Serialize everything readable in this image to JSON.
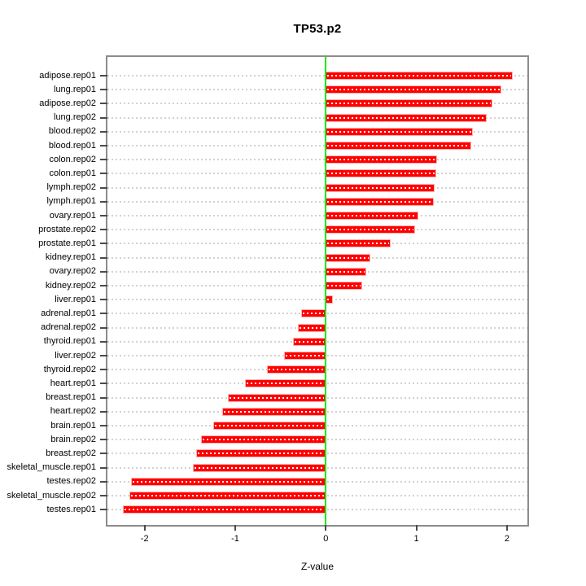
{
  "figure": {
    "title": "TP53.p2",
    "xlabel": "Z-value"
  },
  "chart_data": {
    "type": "bar",
    "orientation": "horizontal",
    "title": "TP53.p2",
    "xlabel": "Z-value",
    "ylabel": "",
    "categories": [
      "adipose.rep01",
      "lung.rep01",
      "adipose.rep02",
      "lung.rep02",
      "blood.rep02",
      "blood.rep01",
      "colon.rep02",
      "colon.rep01",
      "lymph.rep02",
      "lymph.rep01",
      "ovary.rep01",
      "prostate.rep02",
      "prostate.rep01",
      "kidney.rep01",
      "ovary.rep02",
      "kidney.rep02",
      "liver.rep01",
      "adrenal.rep01",
      "adrenal.rep02",
      "thyroid.rep01",
      "liver.rep02",
      "thyroid.rep02",
      "heart.rep01",
      "breast.rep01",
      "heart.rep02",
      "brain.rep01",
      "brain.rep02",
      "breast.rep02",
      "skeletal_muscle.rep01",
      "testes.rep02",
      "skeletal_muscle.rep02",
      "testes.rep01"
    ],
    "values": [
      2.06,
      1.94,
      1.84,
      1.78,
      1.62,
      1.61,
      1.23,
      1.22,
      1.2,
      1.19,
      1.02,
      0.99,
      0.72,
      0.49,
      0.45,
      0.4,
      0.08,
      -0.27,
      -0.31,
      -0.36,
      -0.46,
      -0.65,
      -0.89,
      -1.08,
      -1.14,
      -1.24,
      -1.38,
      -1.43,
      -1.47,
      -2.15,
      -2.17,
      -2.24
    ],
    "xticks": [
      -2,
      -1,
      0,
      1,
      2
    ],
    "xtick_labels": [
      "-2",
      "-1",
      "0",
      "1",
      "2"
    ],
    "xlim": [
      -2.42,
      2.23
    ],
    "grid": "horizontal-dotted-per-category",
    "legend": "none",
    "zero_reference_line": true,
    "colors": {
      "bar_fill": "#ff0000",
      "bar_edge": "#ffb0b0",
      "bar_grid_overlay": "#ffffff",
      "zero_line": "#00ee00",
      "gridline": "#d2d2d2",
      "box": "#8c8c8c",
      "tick": "#4a4a4a",
      "text": "#000000",
      "background": "#ffffff"
    }
  }
}
